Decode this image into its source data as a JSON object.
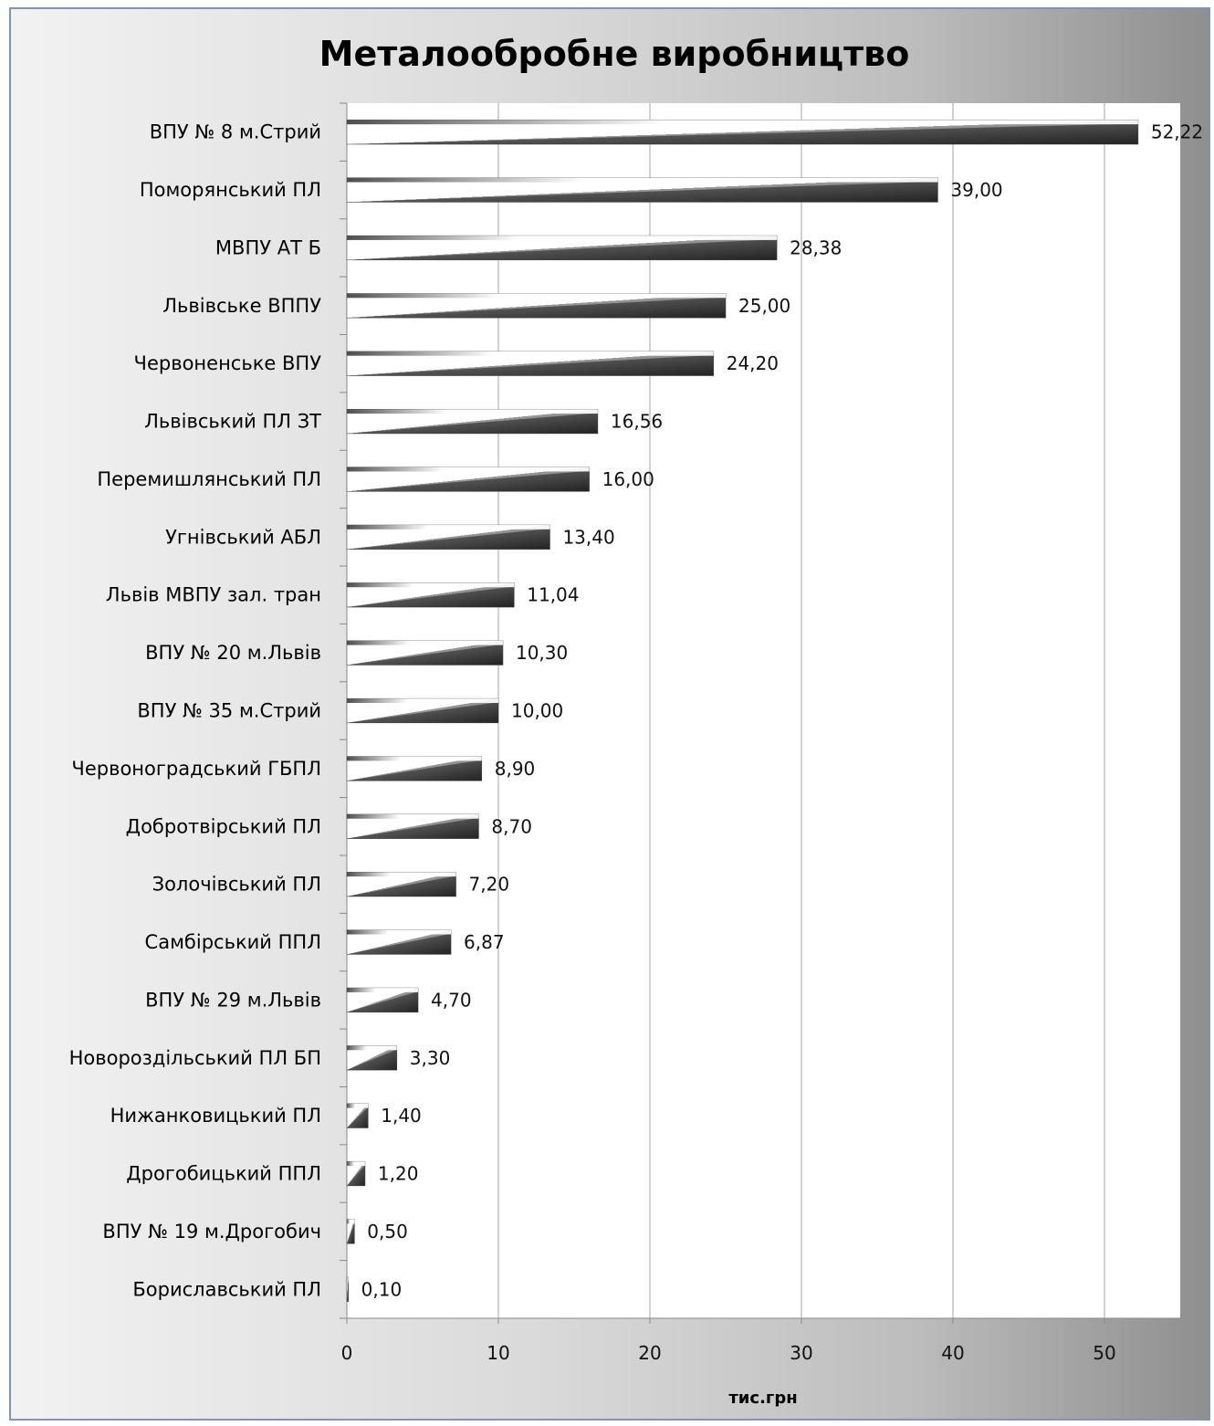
{
  "chart_data": {
    "type": "bar",
    "orientation": "horizontal",
    "title": "Металообробне виробництво",
    "xlabel": "тис.грн",
    "ylabel": "",
    "xlim": [
      0,
      55
    ],
    "xticks": [
      0,
      10,
      20,
      30,
      40,
      50
    ],
    "grid": true,
    "legend": "none",
    "categories": [
      "ВПУ № 8 м.Стрий",
      "Поморянський ПЛ",
      "МВПУ АТ Б",
      "Львівське ВППУ",
      "Червоненське ВПУ",
      "Львівський ПЛ ЗТ",
      "Перемишлянський ПЛ",
      "Угнівський АБЛ",
      "Львів МВПУ зал. тран",
      "ВПУ № 20 м.Львів",
      "ВПУ № 35 м.Стрий",
      "Червоноградський ГБПЛ",
      "Добротвірський ПЛ",
      "Золочівський ПЛ",
      "Самбірський ППЛ",
      "ВПУ № 29 м.Львів",
      "Новороздільський ПЛ БП",
      "Нижанковицький ПЛ",
      "Дрогобицький ППЛ",
      "ВПУ № 19 м.Дрогобич",
      "Бориславський ПЛ"
    ],
    "values": [
      52.22,
      39.0,
      28.38,
      25.0,
      24.2,
      16.56,
      16.0,
      13.4,
      11.04,
      10.3,
      10.0,
      8.9,
      8.7,
      7.2,
      6.87,
      4.7,
      3.3,
      1.4,
      1.2,
      0.5,
      0.1
    ],
    "value_labels": [
      "52,22",
      "39,00",
      "28,38",
      "25,00",
      "24,20",
      "16,56",
      "16,00",
      "13,40",
      "11,04",
      "10,30",
      "10,00",
      "8,90",
      "8,70",
      "7,20",
      "6,87",
      "4,70",
      "3,30",
      "1,40",
      "1,20",
      "0,50",
      "0,10"
    ],
    "colors": {
      "bar_light": "#ffffff",
      "bar_dark": "#2a2a2a",
      "plot_bg": "#ffffff",
      "grid": "#a6a6a6",
      "frame_border": "#7f95b8"
    }
  }
}
